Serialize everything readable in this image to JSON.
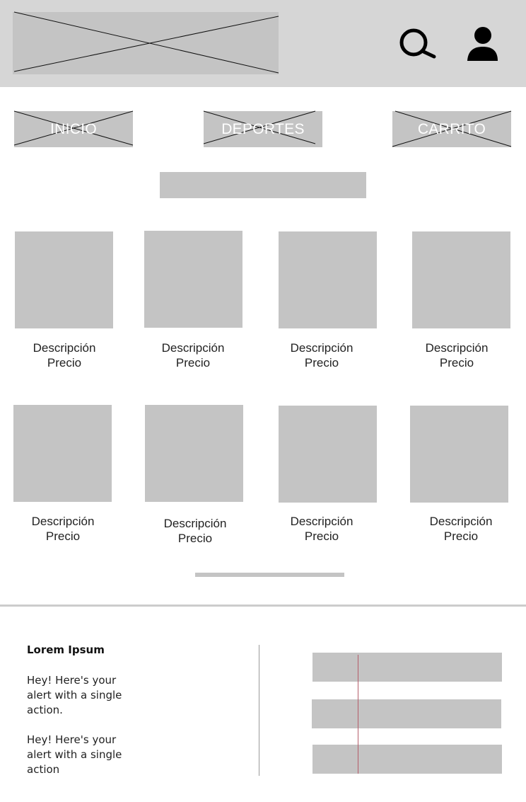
{
  "nav": {
    "items": [
      {
        "label": "INICIO"
      },
      {
        "label": "DEPORTES"
      },
      {
        "label": "CARRITO"
      }
    ]
  },
  "products": [
    {
      "description": "Descripción",
      "price": "Precio"
    },
    {
      "description": "Descripción",
      "price": "Precio"
    },
    {
      "description": "Descripción",
      "price": "Precio"
    },
    {
      "description": "Descripción",
      "price": "Precio"
    },
    {
      "description": "Descripción",
      "price": "Precio"
    },
    {
      "description": "Descripción",
      "price": "Precio"
    },
    {
      "description": "Descripción",
      "price": "Precio"
    },
    {
      "description": "Descripción",
      "price": "Precio"
    }
  ],
  "footer": {
    "title": "Lorem Ipsum",
    "paragraph_1": "Hey! Here's your alert with a single action.",
    "paragraph_2": "Hey! Here's your alert with a single action"
  },
  "colors": {
    "header_background": "#d6d6d6",
    "placeholder": "#c4c4c4",
    "accent_line": "#b55d6a"
  },
  "icons": {
    "search": "search-icon",
    "user": "user-icon"
  }
}
